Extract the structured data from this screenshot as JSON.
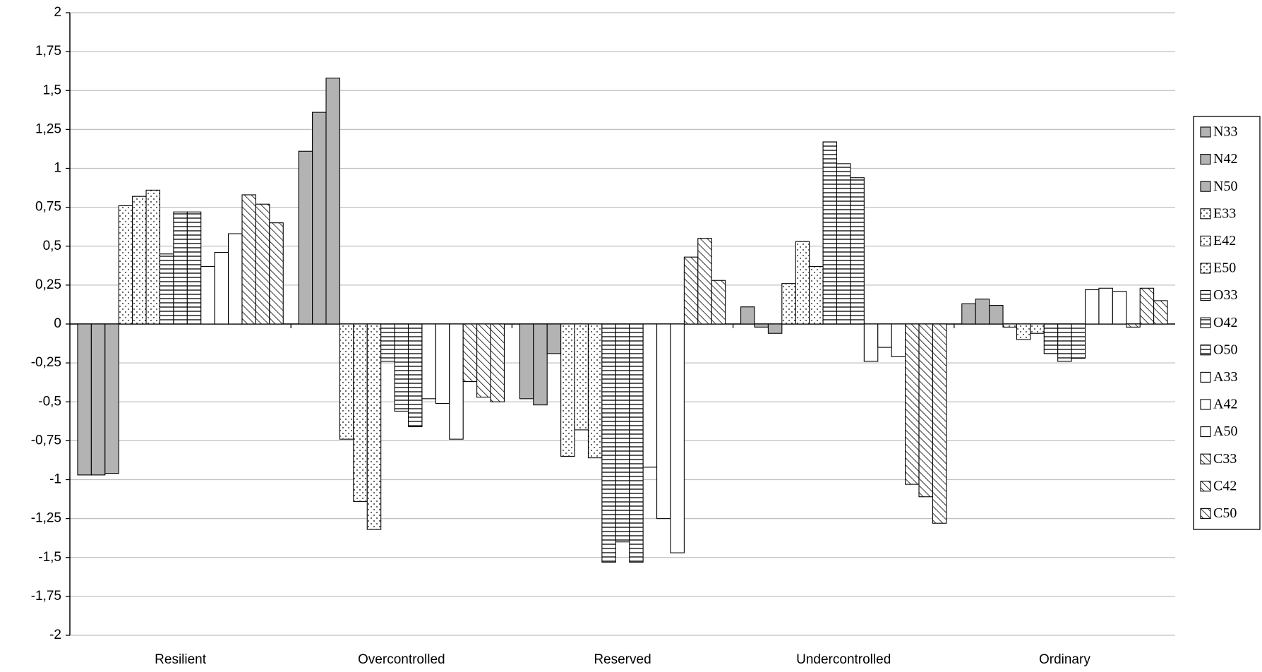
{
  "chart_data": {
    "type": "bar",
    "categories": [
      "Resilient",
      "Overcontrolled",
      "Reserved",
      "Undercontrolled",
      "Ordinary"
    ],
    "ylim": [
      -2,
      2
    ],
    "yticks": [
      -2,
      {
        "value": -1.75,
        "label": "-1,75"
      },
      {
        "value": -1.5,
        "label": "-1,5"
      },
      {
        "value": -1.25,
        "label": "-1,25"
      },
      -1,
      {
        "value": -0.75,
        "label": "-0,75"
      },
      {
        "value": -0.5,
        "label": "-0,5"
      },
      {
        "value": -0.25,
        "label": "-0,25"
      },
      0,
      {
        "value": 0.25,
        "label": "0,25"
      },
      {
        "value": 0.5,
        "label": "0,5"
      },
      {
        "value": 0.75,
        "label": "0,75"
      },
      1,
      {
        "value": 1.25,
        "label": "1,25"
      },
      {
        "value": 1.5,
        "label": "1,5"
      },
      {
        "value": 1.75,
        "label": "1,75"
      },
      2
    ],
    "grid": true,
    "legend": "right",
    "series": [
      {
        "name": "N33",
        "color": "#b3b3b3",
        "pattern": "solid",
        "values": [
          -0.97,
          1.11,
          -0.48,
          0.11,
          0.13
        ]
      },
      {
        "name": "N42",
        "color": "#b3b3b3",
        "pattern": "solid",
        "values": [
          -0.97,
          1.36,
          -0.52,
          -0.02,
          0.16
        ]
      },
      {
        "name": "N50",
        "color": "#b3b3b3",
        "pattern": "solid",
        "values": [
          -0.96,
          1.58,
          -0.19,
          -0.06,
          0.12
        ]
      },
      {
        "name": "E33",
        "color": "#ffffff",
        "pattern": "dots",
        "values": [
          0.76,
          -0.74,
          -0.85,
          0.26,
          -0.02
        ]
      },
      {
        "name": "E42",
        "color": "#ffffff",
        "pattern": "dots",
        "values": [
          0.82,
          -1.14,
          -0.68,
          0.53,
          -0.1
        ]
      },
      {
        "name": "E50",
        "color": "#ffffff",
        "pattern": "dots",
        "values": [
          0.86,
          -1.32,
          -0.86,
          0.37,
          -0.06
        ]
      },
      {
        "name": "O33",
        "color": "#ffffff",
        "pattern": "hlines",
        "values": [
          0.45,
          -0.24,
          -1.53,
          1.17,
          -0.19
        ]
      },
      {
        "name": "O42",
        "color": "#ffffff",
        "pattern": "hlines",
        "values": [
          0.72,
          -0.56,
          -1.4,
          1.03,
          -0.24
        ]
      },
      {
        "name": "O50",
        "color": "#ffffff",
        "pattern": "hlines",
        "values": [
          0.72,
          -0.66,
          -1.53,
          0.94,
          -0.22
        ]
      },
      {
        "name": "A33",
        "color": "#ffffff",
        "pattern": "solid",
        "values": [
          0.37,
          -0.48,
          -0.92,
          -0.24,
          0.22
        ]
      },
      {
        "name": "A42",
        "color": "#ffffff",
        "pattern": "solid",
        "values": [
          0.46,
          -0.51,
          -1.25,
          -0.15,
          0.23
        ]
      },
      {
        "name": "A50",
        "color": "#ffffff",
        "pattern": "solid",
        "values": [
          0.58,
          -0.74,
          -1.47,
          -0.21,
          0.21
        ]
      },
      {
        "name": "C33",
        "color": "#ffffff",
        "pattern": "diagonal",
        "values": [
          0.83,
          -0.37,
          0.43,
          -1.03,
          -0.02
        ]
      },
      {
        "name": "C42",
        "color": "#ffffff",
        "pattern": "diagonal",
        "values": [
          0.77,
          -0.47,
          0.55,
          -1.11,
          0.23
        ]
      },
      {
        "name": "C50",
        "color": "#ffffff",
        "pattern": "diagonal",
        "values": [
          0.65,
          -0.5,
          0.28,
          -1.28,
          0.15
        ]
      }
    ]
  }
}
